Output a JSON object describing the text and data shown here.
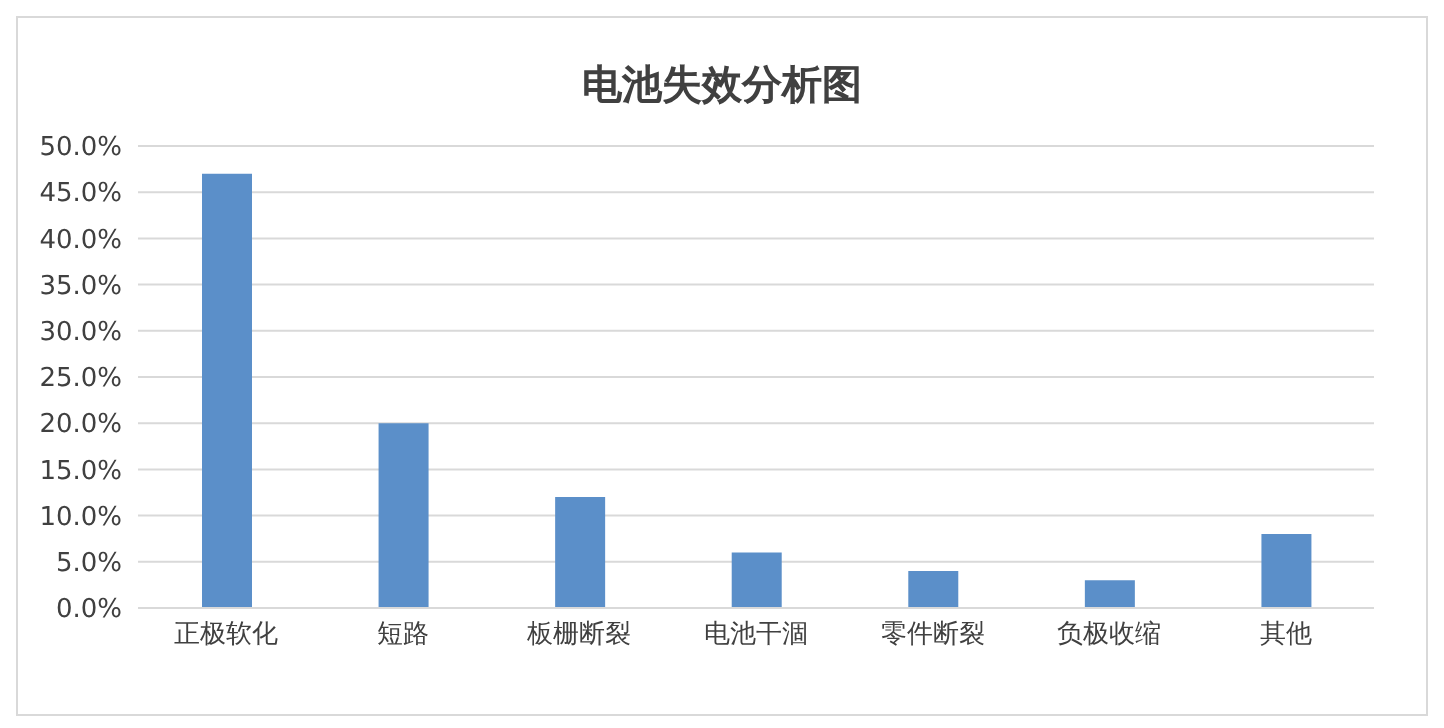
{
  "chart_data": {
    "type": "bar",
    "title": "电池失效分析图",
    "categories": [
      "正极软化",
      "短路",
      "板栅断裂",
      "电池干涸",
      "零件断裂",
      "负极收缩",
      "其他"
    ],
    "values": [
      47,
      20,
      12,
      6,
      4,
      3,
      8
    ],
    "color": "#5b8fc9",
    "ylim": [
      0,
      50
    ],
    "yticks": [
      {
        "value": 0,
        "label": "0.0%"
      },
      {
        "value": 5,
        "label": "5.0%"
      },
      {
        "value": 10,
        "label": "10.0%"
      },
      {
        "value": 15,
        "label": "15.0%"
      },
      {
        "value": 20,
        "label": "20.0%"
      },
      {
        "value": 25,
        "label": "25.0%"
      },
      {
        "value": 30,
        "label": "30.0%"
      },
      {
        "value": 35,
        "label": "35.0%"
      },
      {
        "value": 40,
        "label": "40.0%"
      },
      {
        "value": 45,
        "label": "45.0%"
      },
      {
        "value": 50,
        "label": "50.0%"
      }
    ],
    "grid": "y"
  }
}
